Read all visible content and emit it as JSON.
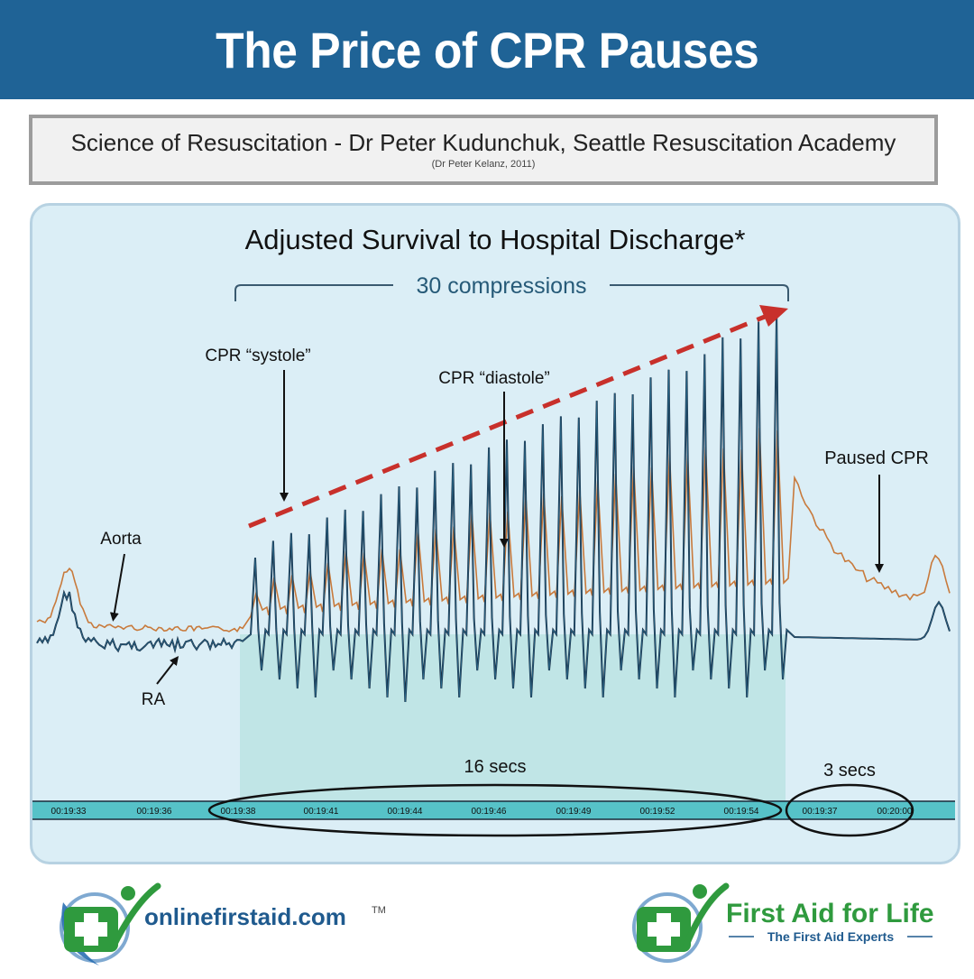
{
  "header": {
    "title": "The Price of CPR Pauses"
  },
  "subtitle": {
    "main": "Science of Resuscitation - Dr Peter Kudunchuk, Seattle Resuscitation Academy",
    "citation": "(Dr Peter Kelanz, 2011)"
  },
  "chart_data": {
    "type": "line",
    "title": "Adjusted Survival to Hospital Discharge*",
    "bracket_label": "30 compressions",
    "annotations": [
      "CPR “systole”",
      "CPR “diastole”",
      "Paused CPR",
      "Aorta",
      "RA"
    ],
    "series": [
      {
        "name": "Aorta",
        "color": "#c87a3c"
      },
      {
        "name": "RA",
        "color": "#1c2f45"
      }
    ],
    "time_ticks": [
      "00:19:33",
      "00:19:36",
      "00:19:38",
      "00:19:41",
      "00:19:44",
      "00:19:46",
      "00:19:49",
      "00:19:52",
      "00:19:54",
      "00:19:37",
      "00:20:00"
    ],
    "durations": [
      {
        "label": "16 secs",
        "phase": "compressions"
      },
      {
        "label": "3 secs",
        "phase": "pause"
      }
    ],
    "compression_count": 30,
    "trend": "pressure peaks rise progressively during uninterrupted compressions",
    "colors": {
      "trend_arrow": "#c8302b",
      "compression_band": "#bde3e4",
      "timeline": "#56c2c8"
    }
  },
  "footer": {
    "logo_left": {
      "text": "onlinefirstaid.com",
      "mark": "TM"
    },
    "logo_right": {
      "title": "First Aid for Life",
      "tagline": "The First Aid Experts"
    }
  }
}
